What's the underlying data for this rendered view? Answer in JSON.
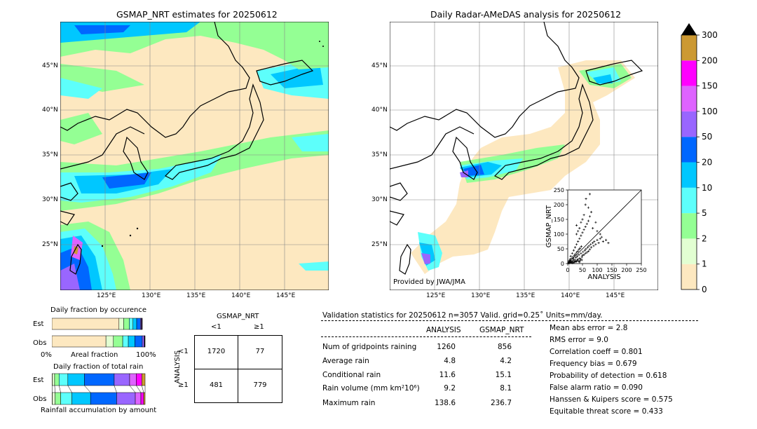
{
  "left_map": {
    "title": "GSMAP_NRT estimates for 20250612",
    "lat_labels": [
      "45°N",
      "40°N",
      "35°N",
      "30°N",
      "25°N"
    ],
    "lon_labels": [
      "125°E",
      "130°E",
      "135°E",
      "140°E",
      "145°E"
    ]
  },
  "right_map": {
    "title": "Daily Radar-AMeDAS analysis for 20250612",
    "lat_labels": [
      "45°N",
      "40°N",
      "35°N",
      "30°N",
      "25°N"
    ],
    "lon_labels": [
      "125°E",
      "130°E",
      "135°E",
      "140°E",
      "145°E"
    ],
    "credit": "Provided by JWA/JMA"
  },
  "colorbar": {
    "ticks": [
      "0",
      "1",
      "2",
      "5",
      "10",
      "20",
      "50",
      "100",
      "150",
      "200",
      "300"
    ],
    "colors": [
      "#fde8c0",
      "#e2ffd2",
      "#94ff94",
      "#5dfffb",
      "#00c7ff",
      "#0067ff",
      "#9966ff",
      "#de63ff",
      "#ff00ff",
      "#cc9933"
    ],
    "extend_color": "#000000"
  },
  "chart_data": [
    {
      "type": "scatter",
      "xlabel": "ANALYSIS",
      "ylabel": "GSMAP_NRT",
      "xlim": [
        0,
        250
      ],
      "ylim": [
        0,
        250
      ],
      "xticks": [
        "0",
        "50",
        "100",
        "150",
        "200",
        "250"
      ],
      "yticks": [
        "0",
        "50",
        "100",
        "150",
        "200",
        "250"
      ],
      "points": [
        [
          2,
          1
        ],
        [
          4,
          3
        ],
        [
          6,
          2
        ],
        [
          8,
          5
        ],
        [
          10,
          4
        ],
        [
          12,
          8
        ],
        [
          15,
          6
        ],
        [
          18,
          10
        ],
        [
          20,
          15
        ],
        [
          22,
          5
        ],
        [
          25,
          12
        ],
        [
          28,
          20
        ],
        [
          30,
          8
        ],
        [
          32,
          25
        ],
        [
          35,
          14
        ],
        [
          38,
          30
        ],
        [
          40,
          18
        ],
        [
          42,
          10
        ],
        [
          45,
          35
        ],
        [
          48,
          22
        ],
        [
          50,
          28
        ],
        [
          52,
          40
        ],
        [
          55,
          30
        ],
        [
          58,
          45
        ],
        [
          60,
          35
        ],
        [
          62,
          50
        ],
        [
          65,
          38
        ],
        [
          68,
          55
        ],
        [
          70,
          42
        ],
        [
          72,
          60
        ],
        [
          75,
          48
        ],
        [
          78,
          65
        ],
        [
          80,
          55
        ],
        [
          85,
          70
        ],
        [
          88,
          60
        ],
        [
          90,
          75
        ],
        [
          95,
          65
        ],
        [
          100,
          80
        ],
        [
          105,
          70
        ],
        [
          110,
          85
        ],
        [
          115,
          90
        ],
        [
          120,
          75
        ],
        [
          130,
          80
        ],
        [
          138,
          70
        ],
        [
          10,
          25
        ],
        [
          15,
          35
        ],
        [
          20,
          45
        ],
        [
          25,
          55
        ],
        [
          30,
          65
        ],
        [
          35,
          75
        ],
        [
          40,
          85
        ],
        [
          45,
          95
        ],
        [
          50,
          105
        ],
        [
          55,
          115
        ],
        [
          60,
          125
        ],
        [
          65,
          135
        ],
        [
          70,
          145
        ],
        [
          75,
          160
        ],
        [
          80,
          175
        ],
        [
          70,
          190
        ],
        [
          60,
          200
        ],
        [
          55,
          165
        ],
        [
          50,
          150
        ],
        [
          45,
          140
        ],
        [
          40,
          120
        ],
        [
          35,
          110
        ],
        [
          30,
          100
        ],
        [
          62,
          220
        ],
        [
          75,
          236
        ],
        [
          30,
          130
        ],
        [
          85,
          120
        ],
        [
          95,
          140
        ],
        [
          100,
          110
        ],
        [
          110,
          100
        ],
        [
          5,
          10
        ],
        [
          8,
          15
        ],
        [
          12,
          3
        ],
        [
          16,
          2
        ],
        [
          20,
          3
        ],
        [
          24,
          8
        ],
        [
          28,
          6
        ],
        [
          32,
          12
        ],
        [
          36,
          8
        ],
        [
          40,
          5
        ],
        [
          44,
          15
        ],
        [
          48,
          12
        ],
        [
          3,
          6
        ],
        [
          6,
          9
        ],
        [
          9,
          12
        ],
        [
          14,
          18
        ],
        [
          18,
          22
        ],
        [
          22,
          28
        ],
        [
          26,
          32
        ],
        [
          30,
          38
        ],
        [
          34,
          42
        ],
        [
          38,
          48
        ],
        [
          42,
          52
        ],
        [
          46,
          58
        ]
      ]
    },
    {
      "type": "bar",
      "title": "Daily fraction by occurence",
      "stacked": true,
      "orientation": "horizontal",
      "categories": [
        "Est",
        "Obs"
      ],
      "xlim": [
        0,
        100
      ],
      "xticks": [
        "0%",
        "100%"
      ],
      "xlabel": "Areal fraction",
      "series": [
        {
          "color": "#fde8c0",
          "values": [
            72,
            58
          ]
        },
        {
          "color": "#e2ffd2",
          "values": [
            5,
            8
          ]
        },
        {
          "color": "#94ff94",
          "values": [
            6,
            10
          ]
        },
        {
          "color": "#5dfffb",
          "values": [
            4,
            6
          ]
        },
        {
          "color": "#00c7ff",
          "values": [
            4,
            7
          ]
        },
        {
          "color": "#0067ff",
          "values": [
            4,
            8
          ]
        },
        {
          "color": "#9966ff",
          "values": [
            1,
            2
          ]
        },
        {
          "color": "#de63ff",
          "values": [
            0.5,
            0.5
          ]
        },
        {
          "color": "#ff00ff",
          "values": [
            0.3,
            0.2
          ]
        },
        {
          "color": "#cc9933",
          "values": [
            0.2,
            0.3
          ]
        }
      ]
    },
    {
      "type": "bar",
      "title": "Daily fraction of total rain",
      "stacked": true,
      "orientation": "horizontal",
      "categories": [
        "Est",
        "Obs"
      ],
      "xlim": [
        0,
        100
      ],
      "xlabel": "Rainfall accumulation by amount",
      "series": [
        {
          "color": "#fde8c0",
          "values": [
            0.5,
            0.5
          ]
        },
        {
          "color": "#e2ffd2",
          "values": [
            2,
            3
          ]
        },
        {
          "color": "#94ff94",
          "values": [
            4,
            6
          ]
        },
        {
          "color": "#5dfffb",
          "values": [
            8,
            12
          ]
        },
        {
          "color": "#00c7ff",
          "values": [
            15,
            20
          ]
        },
        {
          "color": "#0067ff",
          "values": [
            27,
            28
          ]
        },
        {
          "color": "#9966ff",
          "values": [
            14,
            20
          ]
        },
        {
          "color": "#de63ff",
          "values": [
            6,
            6
          ]
        },
        {
          "color": "#ff00ff",
          "values": [
            5,
            3
          ]
        },
        {
          "color": "#cc9933",
          "values": [
            3,
            1.5
          ]
        }
      ]
    }
  ],
  "contingency": {
    "col_title": "GSMAP_NRT",
    "col_labels": [
      "<1",
      "≥1"
    ],
    "row_title": "ANALYSIS",
    "row_labels": [
      "<1",
      "≥1"
    ],
    "cells": [
      [
        "1720",
        "77"
      ],
      [
        "481",
        "779"
      ]
    ]
  },
  "validation": {
    "header": "Validation statistics for 20250612  n=3057 Valid. grid=0.25˚ Units=mm/day.",
    "col_analysis": "ANALYSIS",
    "col_gsmap": "GSMAP_NRT",
    "rows": [
      {
        "label": "Num of gridpoints raining",
        "analysis": "1260",
        "gsmap": "856"
      },
      {
        "label": "Average rain",
        "analysis": "4.8",
        "gsmap": "4.2"
      },
      {
        "label": "Conditional rain",
        "analysis": "11.6",
        "gsmap": "15.1"
      },
      {
        "label": "Rain volume (mm km²10⁶)",
        "analysis": "9.2",
        "gsmap": "8.1"
      },
      {
        "label": "Maximum rain",
        "analysis": "138.6",
        "gsmap": "236.7"
      }
    ],
    "scores": [
      "Mean abs error =    2.8",
      "RMS error =    9.0",
      "Correlation coeff =  0.801",
      "Frequency bias =  0.679",
      "Probability of detection =  0.618",
      "False alarm ratio =  0.090",
      "Hanssen & Kuipers score =  0.575",
      "Equitable threat score =  0.433"
    ]
  }
}
